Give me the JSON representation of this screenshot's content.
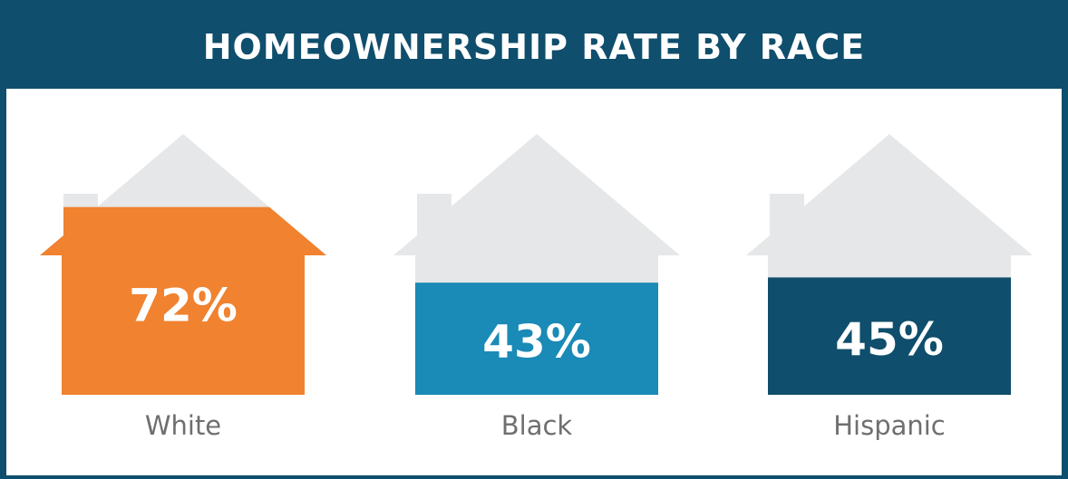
{
  "chart_data": {
    "type": "bar",
    "title": "HOMEOWNERSHIP RATE BY RACE",
    "categories": [
      "White",
      "Black",
      "Hispanic"
    ],
    "values": [
      72,
      43,
      45
    ],
    "value_labels": [
      "72%",
      "43%",
      "45%"
    ],
    "colors": [
      "#f08230",
      "#1a8ab6",
      "#0f4e6c"
    ],
    "ylim": [
      0,
      100
    ],
    "house_color": "#e6e7e8"
  }
}
